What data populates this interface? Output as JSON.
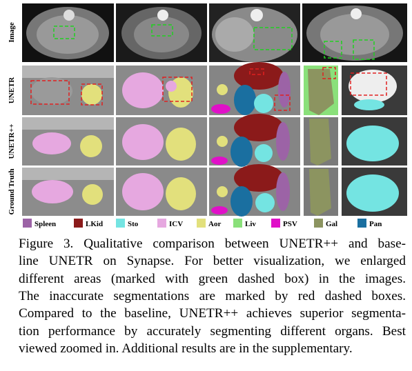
{
  "row_labels": [
    "Image",
    "UNETR",
    "UNETR++",
    "Ground Truth"
  ],
  "legend": [
    {
      "label": "Spleen",
      "color": "#9c63a6"
    },
    {
      "label": "LKid",
      "color": "#8b1a1a"
    },
    {
      "label": "Sto",
      "color": "#74e4e2"
    },
    {
      "label": "ICV",
      "color": "#e6a8e0"
    },
    {
      "label": "Aor",
      "color": "#e2e07c"
    },
    {
      "label": "Liv",
      "color": "#8ae07a"
    },
    {
      "label": "PSV",
      "color": "#e010c8"
    },
    {
      "label": "Gal",
      "color": "#8c9460"
    },
    {
      "label": "Pan",
      "color": "#1a6fa0"
    }
  ],
  "caption_lines": [
    "Figure 3.  Qualitative comparison between UNETR++ and base-",
    "line UNETR on Synapse.  For better visualization, we enlarged",
    "different areas (marked with green dashed box) in the images.",
    "The inaccurate segmentations are marked by red dashed boxes.",
    "Compared to the baseline, UNETR++ achieves superior segmenta-",
    "tion performance by accurately segmenting different organs. Best",
    "viewed zoomed in. Additional results are in the supplementary."
  ]
}
